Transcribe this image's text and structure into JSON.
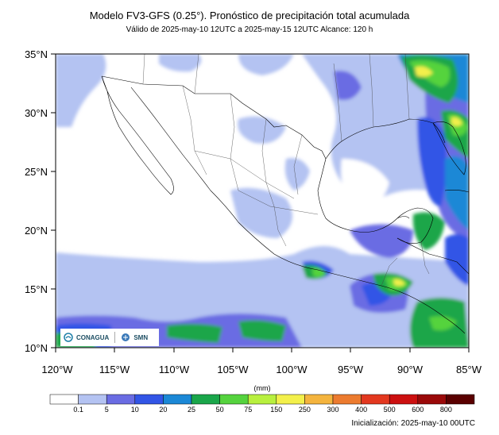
{
  "header": {
    "title": "Modelo FV3-GFS (0.25°). Pronóstico de precipitación total acumulada",
    "subtitle": "Válido de 2025-may-10 12UTC a 2025-may-15 12UTC    Alcance: 120 h"
  },
  "map": {
    "lat_labels": [
      "35°N",
      "30°N",
      "25°N",
      "20°N",
      "15°N",
      "10°N"
    ],
    "lon_labels": [
      "120°W",
      "115°W",
      "110°W",
      "105°W",
      "100°W",
      "95°W",
      "90°W",
      "85°W"
    ],
    "extent": {
      "lon_min": -120,
      "lon_max": -85,
      "lat_min": 10,
      "lat_max": 35
    }
  },
  "logos": {
    "conagua": "CONAGUA",
    "smn": "SMN"
  },
  "colorbar": {
    "units": "(mm)",
    "labels": [
      "0.1",
      "5",
      "10",
      "20",
      "25",
      "50",
      "75",
      "150",
      "250",
      "300",
      "400",
      "500",
      "600",
      "800"
    ],
    "colors": [
      "#ffffff",
      "#b4c3f2",
      "#6a6ce3",
      "#3255e6",
      "#1b88d6",
      "#1aa64a",
      "#55d33e",
      "#b8f03e",
      "#f3f04b",
      "#f4b43e",
      "#ec7b2f",
      "#e3381f",
      "#cc1010",
      "#9a0909",
      "#5a0000"
    ]
  },
  "footer": {
    "initialization": "Inicialización: 2025-may-10 00UTC"
  }
}
